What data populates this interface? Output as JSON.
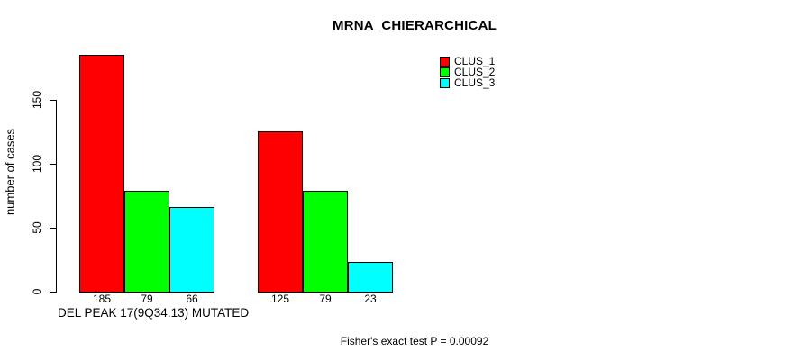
{
  "chart_data": {
    "type": "bar",
    "title": "MRNA_CHIERARCHICAL",
    "ylabel": "number of cases",
    "xlabel": "DEL PEAK 17(9Q34.13) MUTATED",
    "footnote": "Fisher's exact test P = 0.00092",
    "yticks": [
      0,
      50,
      100,
      150
    ],
    "ylim": [
      0,
      185
    ],
    "grid": false,
    "legend_position": "top-right",
    "bar_value_labels": true,
    "series": [
      {
        "name": "CLUS_1",
        "color": "#ff0000",
        "values": [
          185,
          125
        ]
      },
      {
        "name": "CLUS_2",
        "color": "#00ff00",
        "values": [
          79,
          79
        ]
      },
      {
        "name": "CLUS_3",
        "color": "#00ffff",
        "values": [
          66,
          23
        ]
      }
    ],
    "colors": {
      "background": "#ffffff",
      "axis": "#000000",
      "text": "#000000"
    }
  }
}
